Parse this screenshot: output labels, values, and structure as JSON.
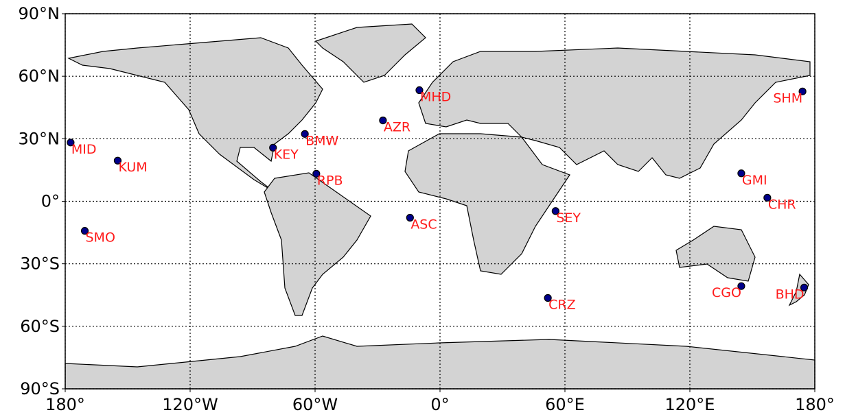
{
  "chart_data": {
    "type": "map",
    "xlim": [
      -180,
      180
    ],
    "ylim": [
      -90,
      90
    ],
    "xticks": [
      {
        "value": -180,
        "label": "180°"
      },
      {
        "value": -120,
        "label": "120°W"
      },
      {
        "value": -60,
        "label": "60°W"
      },
      {
        "value": 0,
        "label": "0°"
      },
      {
        "value": 60,
        "label": "60°E"
      },
      {
        "value": 120,
        "label": "120°E"
      },
      {
        "value": 180,
        "label": "180°"
      }
    ],
    "yticks": [
      {
        "value": -90,
        "label": "90°S"
      },
      {
        "value": -60,
        "label": "60°S"
      },
      {
        "value": -30,
        "label": "30°S"
      },
      {
        "value": 0,
        "label": "0°"
      },
      {
        "value": 30,
        "label": "30°N"
      },
      {
        "value": 60,
        "label": "60°N"
      },
      {
        "value": 90,
        "label": "90°N"
      }
    ],
    "grid": true,
    "land_color": "#d3d3d3",
    "marker_color": "#00008b",
    "label_color": "#ff1a1a",
    "labels": [
      "MID",
      "KUM",
      "SMO",
      "KEY",
      "BMW",
      "RPB",
      "AZR",
      "MHD",
      "ASC",
      "SEY",
      "CRZ",
      "GMI",
      "CHR",
      "SHM",
      "CGO",
      "BHD"
    ],
    "x": [
      -177.4,
      -154.8,
      -170.6,
      -80.2,
      -64.9,
      -59.4,
      -27.4,
      -9.9,
      -14.4,
      55.5,
      51.8,
      144.7,
      157.2,
      174.1,
      144.7,
      174.9
    ],
    "y": [
      28.2,
      19.5,
      -14.2,
      25.7,
      32.3,
      13.2,
      38.8,
      53.3,
      -7.9,
      -4.7,
      -46.4,
      13.4,
      1.7,
      52.7,
      -40.7,
      -41.4
    ]
  }
}
